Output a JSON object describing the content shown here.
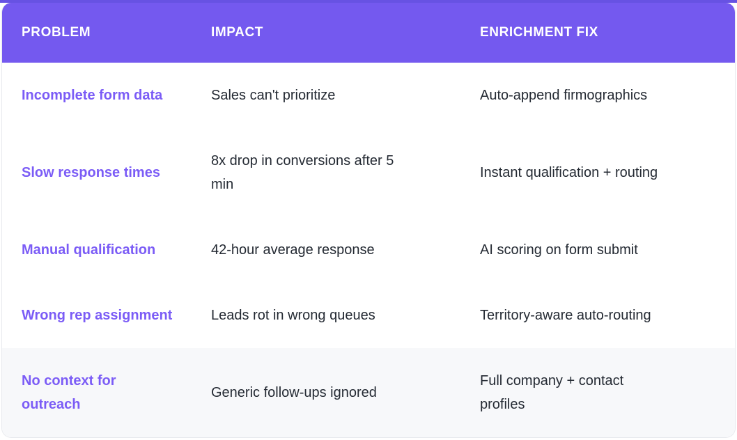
{
  "table": {
    "columns": [
      {
        "key": "problem",
        "label": "PROBLEM"
      },
      {
        "key": "impact",
        "label": "IMPACT"
      },
      {
        "key": "fix",
        "label": "ENRICHMENT FIX"
      }
    ],
    "rows": [
      {
        "problem": "Incomplete form data",
        "impact": "Sales can't prioritize",
        "fix": "Auto-append firmographics"
      },
      {
        "problem": "Slow response times",
        "impact": "8x drop in conversions after 5\nmin",
        "fix": "Instant qualification + routing"
      },
      {
        "problem": "Manual qualification",
        "impact": "42-hour average response",
        "fix": "AI scoring on form submit"
      },
      {
        "problem": "Wrong rep assignment",
        "impact": "Leads rot in wrong queues",
        "fix": "Territory-aware auto-routing"
      },
      {
        "problem": "No context for\noutreach",
        "impact": "Generic follow-ups ignored",
        "fix": "Full company + contact\nprofiles"
      }
    ],
    "colors": {
      "header_bg": "#7459ef",
      "top_edge": "#6752e3",
      "accent_text": "#7b5cf6",
      "body_text": "#242a33",
      "alt_row_bg": "#f7f8fa",
      "card_border": "#e8eaee"
    }
  }
}
